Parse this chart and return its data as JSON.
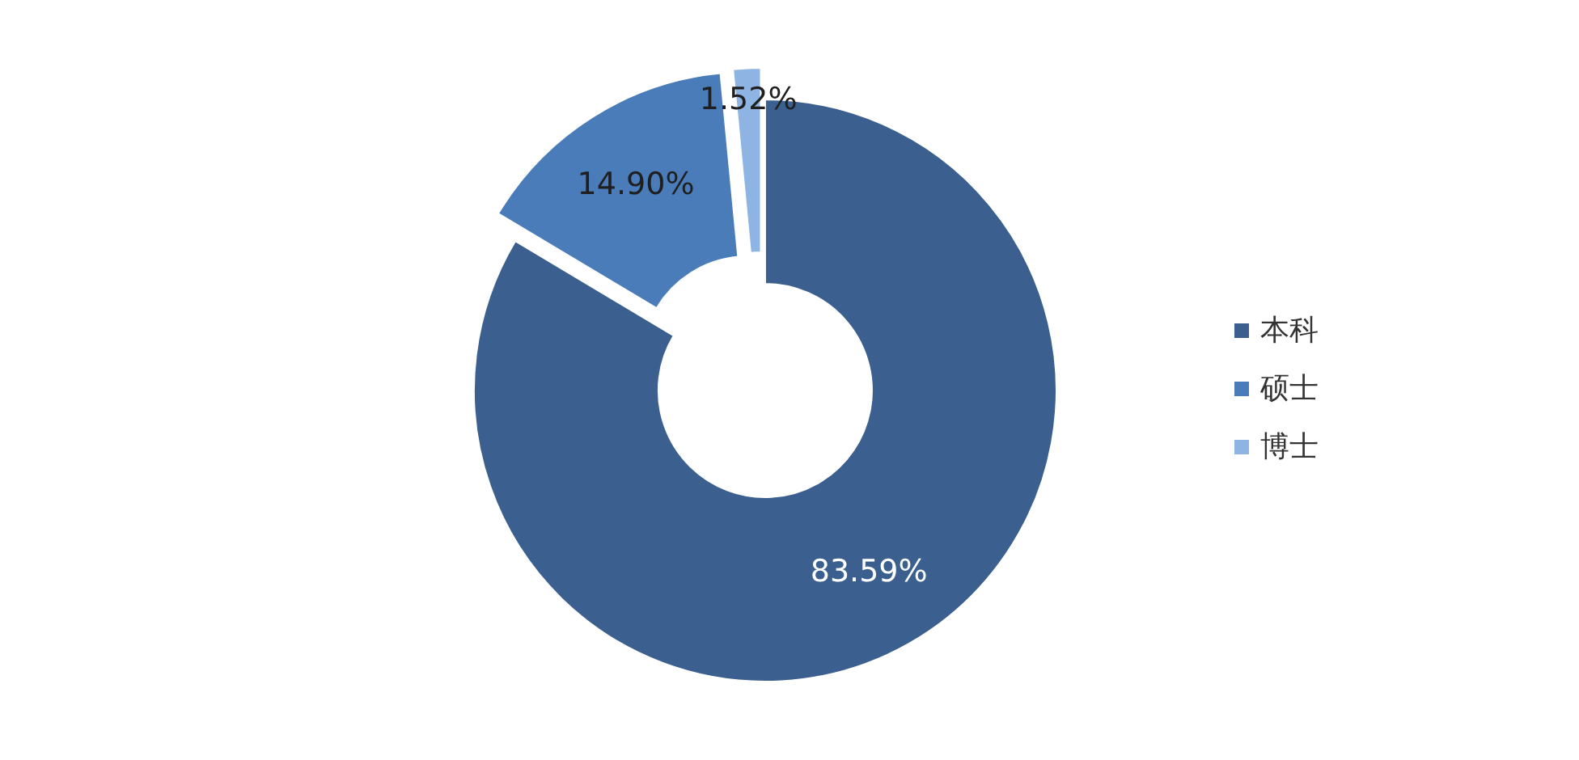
{
  "chart_data": {
    "type": "donut",
    "categories": [
      "本科",
      "硕士",
      "博士"
    ],
    "values": [
      83.59,
      14.9,
      1.52
    ],
    "value_labels": [
      "83.59%",
      "14.90%",
      "1.52%"
    ],
    "colors": [
      "#3b5f8e",
      "#4a7cba",
      "#8db4e2"
    ],
    "legend": "right"
  }
}
